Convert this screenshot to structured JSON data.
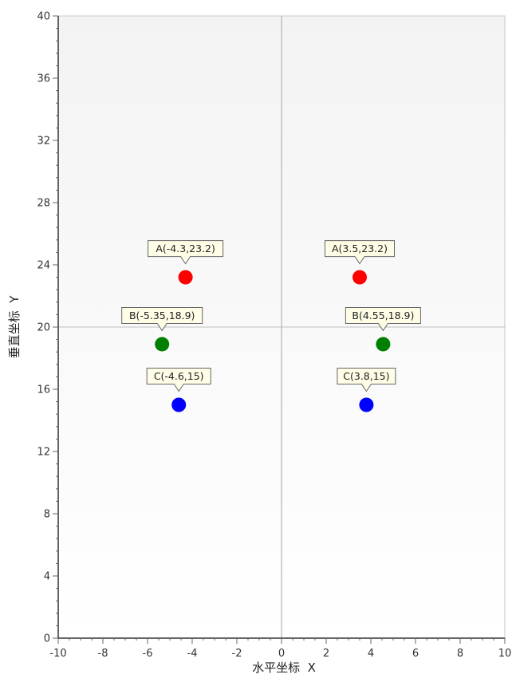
{
  "chart_data": {
    "type": "scatter",
    "xlabel": "水平坐标  X",
    "ylabel": "垂直坐标  Y",
    "xlim": [
      -10,
      10
    ],
    "ylim": [
      0,
      40
    ],
    "xticks": [
      -10,
      -8,
      -6,
      -4,
      -2,
      0,
      2,
      4,
      6,
      8,
      10
    ],
    "yticks": [
      0,
      4,
      8,
      12,
      16,
      20,
      24,
      28,
      32,
      36,
      40
    ],
    "reference_lines": {
      "x": 0,
      "y": 20
    },
    "grid": false,
    "legend": "none",
    "points": [
      {
        "label": "A(-4.3,23.2)",
        "x": -4.3,
        "y": 23.2,
        "color": "#ff0000"
      },
      {
        "label": "B(-5.35,18.9)",
        "x": -5.35,
        "y": 18.9,
        "color": "#008000"
      },
      {
        "label": "C(-4.6,15)",
        "x": -4.6,
        "y": 15,
        "color": "#0000ff"
      },
      {
        "label": "A(3.5,23.2)",
        "x": 3.5,
        "y": 23.2,
        "color": "#ff0000"
      },
      {
        "label": "B(4.55,18.9)",
        "x": 4.55,
        "y": 18.9,
        "color": "#008000"
      },
      {
        "label": "C(3.8,15)",
        "x": 3.8,
        "y": 15,
        "color": "#0000ff"
      }
    ]
  }
}
